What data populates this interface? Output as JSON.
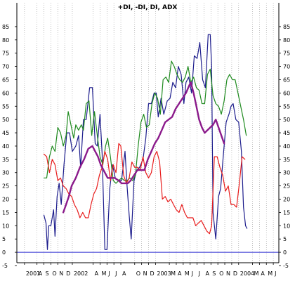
{
  "chart_data": {
    "type": "line",
    "title": "+DI, -DI, DI, ADX",
    "xlabel": "",
    "ylabel": "",
    "ylim": [
      -5,
      90
    ],
    "yticks": [
      -5,
      0,
      5,
      10,
      15,
      20,
      25,
      30,
      35,
      40,
      45,
      50,
      55,
      60,
      65,
      70,
      75,
      80,
      85
    ],
    "grid": "vertical dotted",
    "x_tick_labels": [
      {
        "label": "2001",
        "t": 0.0
      },
      {
        "label": "A",
        "t": 1.8
      },
      {
        "label": "S",
        "t": 2.8
      },
      {
        "label": "O",
        "t": 3.8
      },
      {
        "label": "N",
        "t": 4.8
      },
      {
        "label": "D",
        "t": 5.8
      },
      {
        "label": "2002",
        "t": 6.9
      },
      {
        "label": "A",
        "t": 9.9
      },
      {
        "label": "M",
        "t": 10.9
      },
      {
        "label": "J",
        "t": 11.9
      },
      {
        "label": "J",
        "t": 12.9
      },
      {
        "label": "A",
        "t": 13.9
      },
      {
        "label": "O",
        "t": 15.9
      },
      {
        "label": "N",
        "t": 16.9
      },
      {
        "label": "D",
        "t": 17.9
      },
      {
        "label": "2003",
        "t": 18.9
      },
      {
        "label": "M",
        "t": 20.9
      },
      {
        "label": "A",
        "t": 21.9
      },
      {
        "label": "M",
        "t": 22.9
      },
      {
        "label": "J",
        "t": 23.9
      },
      {
        "label": "J",
        "t": 24.9
      },
      {
        "label": "A",
        "t": 25.9
      },
      {
        "label": "S",
        "t": 26.9
      },
      {
        "label": "O",
        "t": 27.9
      },
      {
        "label": "N",
        "t": 28.9
      },
      {
        "label": "D",
        "t": 29.9
      },
      {
        "label": "2004",
        "t": 30.9
      },
      {
        "label": "M",
        "t": 32.9
      },
      {
        "label": "A",
        "t": 33.9
      },
      {
        "label": "M",
        "t": 34.9
      },
      {
        "label": "J",
        "t": 35.9
      }
    ],
    "x_range": [
      -0.8,
      36.7
    ],
    "zero_line": 0,
    "series": [
      {
        "key": "blue",
        "color": "#1c1c8c",
        "width": 1.2,
        "points": [
          [
            2.8,
            14
          ],
          [
            3.1,
            11
          ],
          [
            3.3,
            1
          ],
          [
            3.5,
            10
          ],
          [
            3.8,
            10
          ],
          [
            4.2,
            16
          ],
          [
            4.4,
            6
          ],
          [
            4.7,
            21
          ],
          [
            5.0,
            26
          ],
          [
            5.3,
            18
          ],
          [
            5.7,
            33
          ],
          [
            6.1,
            45
          ],
          [
            6.5,
            45
          ],
          [
            6.9,
            38
          ],
          [
            7.4,
            40
          ],
          [
            7.8,
            44
          ],
          [
            8.1,
            32
          ],
          [
            8.5,
            50
          ],
          [
            8.9,
            50
          ],
          [
            9.4,
            62
          ],
          [
            9.8,
            62
          ],
          [
            10.2,
            41
          ],
          [
            10.5,
            40
          ],
          [
            10.9,
            52
          ],
          [
            11.2,
            37
          ],
          [
            11.6,
            1
          ],
          [
            11.9,
            1
          ],
          [
            12.3,
            24
          ],
          [
            12.7,
            33
          ],
          [
            13.1,
            28
          ],
          [
            13.6,
            27
          ],
          [
            14.0,
            27
          ],
          [
            14.5,
            38
          ],
          [
            14.8,
            25
          ],
          [
            15.1,
            14
          ],
          [
            15.4,
            5
          ],
          [
            15.8,
            27
          ],
          [
            16.2,
            31
          ],
          [
            16.6,
            32
          ],
          [
            17.1,
            35
          ],
          [
            17.5,
            43
          ],
          [
            17.9,
            56
          ],
          [
            18.3,
            56
          ],
          [
            18.7,
            60
          ],
          [
            19.0,
            60
          ],
          [
            19.3,
            51
          ],
          [
            19.7,
            58
          ],
          [
            20.1,
            52
          ],
          [
            20.6,
            57
          ],
          [
            21.0,
            58
          ],
          [
            21.4,
            64
          ],
          [
            21.8,
            62
          ],
          [
            22.2,
            70
          ],
          [
            22.6,
            67
          ],
          [
            23.0,
            56
          ],
          [
            23.3,
            64
          ],
          [
            23.7,
            66
          ],
          [
            24.1,
            60
          ],
          [
            24.5,
            74
          ],
          [
            24.9,
            73
          ],
          [
            25.3,
            79
          ],
          [
            25.7,
            65
          ],
          [
            26.1,
            62
          ],
          [
            26.5,
            82
          ],
          [
            26.8,
            82
          ],
          [
            27.0,
            70
          ],
          [
            27.2,
            15
          ],
          [
            27.6,
            5
          ],
          [
            28.0,
            21
          ],
          [
            28.3,
            24
          ],
          [
            28.7,
            37
          ],
          [
            29.1,
            49
          ],
          [
            29.5,
            52
          ],
          [
            29.8,
            55
          ],
          [
            30.1,
            56
          ],
          [
            30.5,
            50
          ],
          [
            30.9,
            49
          ],
          [
            31.3,
            38
          ],
          [
            31.6,
            17
          ],
          [
            31.9,
            10
          ],
          [
            32.1,
            9
          ]
        ]
      },
      {
        "key": "green",
        "color": "#1e8a1e",
        "width": 1.2,
        "points": [
          [
            2.8,
            28
          ],
          [
            3.2,
            28
          ],
          [
            3.6,
            36
          ],
          [
            4.0,
            40
          ],
          [
            4.4,
            38
          ],
          [
            4.8,
            47
          ],
          [
            5.2,
            45
          ],
          [
            5.6,
            40
          ],
          [
            6.0,
            44
          ],
          [
            6.3,
            53
          ],
          [
            6.7,
            48
          ],
          [
            7.1,
            43
          ],
          [
            7.4,
            48
          ],
          [
            7.8,
            46
          ],
          [
            8.2,
            48
          ],
          [
            8.5,
            46
          ],
          [
            8.9,
            56
          ],
          [
            9.3,
            57
          ],
          [
            9.7,
            44
          ],
          [
            10.1,
            53
          ],
          [
            10.5,
            44
          ],
          [
            10.9,
            36
          ],
          [
            11.3,
            33
          ],
          [
            11.7,
            40
          ],
          [
            12.0,
            43
          ],
          [
            12.4,
            36
          ],
          [
            12.8,
            27
          ],
          [
            13.2,
            26
          ],
          [
            13.6,
            27
          ],
          [
            14.0,
            28
          ],
          [
            14.4,
            27
          ],
          [
            14.8,
            27
          ],
          [
            15.2,
            28
          ],
          [
            15.6,
            27
          ],
          [
            16.0,
            29
          ],
          [
            16.4,
            40
          ],
          [
            16.8,
            49
          ],
          [
            17.2,
            52
          ],
          [
            17.6,
            47
          ],
          [
            18.0,
            48
          ],
          [
            18.4,
            56
          ],
          [
            18.8,
            60
          ],
          [
            19.2,
            58
          ],
          [
            19.6,
            52
          ],
          [
            20.0,
            65
          ],
          [
            20.4,
            66
          ],
          [
            20.8,
            64
          ],
          [
            21.2,
            72
          ],
          [
            21.6,
            70
          ],
          [
            22.0,
            67
          ],
          [
            22.4,
            65
          ],
          [
            22.8,
            64
          ],
          [
            23.2,
            66
          ],
          [
            23.6,
            70
          ],
          [
            24.0,
            64
          ],
          [
            24.4,
            66
          ],
          [
            24.8,
            62
          ],
          [
            25.2,
            61
          ],
          [
            25.6,
            56
          ],
          [
            26.0,
            56
          ],
          [
            26.4,
            67
          ],
          [
            26.8,
            69
          ],
          [
            27.2,
            59
          ],
          [
            27.6,
            56
          ],
          [
            28.0,
            55
          ],
          [
            28.4,
            52
          ],
          [
            28.8,
            57
          ],
          [
            29.2,
            65
          ],
          [
            29.6,
            67
          ],
          [
            30.0,
            65
          ],
          [
            30.4,
            65
          ],
          [
            30.8,
            60
          ],
          [
            31.2,
            55
          ],
          [
            31.6,
            50
          ],
          [
            32.0,
            44
          ]
        ]
      },
      {
        "key": "red",
        "color": "#e81c1c",
        "width": 1.2,
        "points": [
          [
            2.8,
            37
          ],
          [
            3.2,
            36
          ],
          [
            3.6,
            30
          ],
          [
            4.0,
            35
          ],
          [
            4.4,
            33
          ],
          [
            4.8,
            27
          ],
          [
            5.2,
            28
          ],
          [
            5.6,
            25
          ],
          [
            6.0,
            24
          ],
          [
            6.4,
            22
          ],
          [
            6.8,
            21
          ],
          [
            7.2,
            18
          ],
          [
            7.6,
            16
          ],
          [
            8.0,
            13
          ],
          [
            8.4,
            15
          ],
          [
            8.8,
            13
          ],
          [
            9.2,
            13
          ],
          [
            9.6,
            18
          ],
          [
            10.0,
            22
          ],
          [
            10.4,
            24
          ],
          [
            10.8,
            29
          ],
          [
            11.2,
            32
          ],
          [
            11.6,
            38
          ],
          [
            12.0,
            35
          ],
          [
            12.4,
            27
          ],
          [
            12.8,
            33
          ],
          [
            13.2,
            30
          ],
          [
            13.6,
            41
          ],
          [
            13.9,
            40
          ],
          [
            14.3,
            29
          ],
          [
            14.7,
            26
          ],
          [
            15.1,
            28
          ],
          [
            15.5,
            34
          ],
          [
            15.9,
            32
          ],
          [
            16.3,
            32
          ],
          [
            16.7,
            31
          ],
          [
            17.1,
            36
          ],
          [
            17.5,
            30
          ],
          [
            17.9,
            28
          ],
          [
            18.3,
            30
          ],
          [
            18.7,
            36
          ],
          [
            19.1,
            38
          ],
          [
            19.5,
            34
          ],
          [
            19.9,
            20
          ],
          [
            20.3,
            21
          ],
          [
            20.7,
            19
          ],
          [
            21.1,
            20
          ],
          [
            21.5,
            18
          ],
          [
            21.9,
            16
          ],
          [
            22.3,
            15
          ],
          [
            22.7,
            18
          ],
          [
            23.1,
            15
          ],
          [
            23.5,
            13
          ],
          [
            23.9,
            13
          ],
          [
            24.3,
            13
          ],
          [
            24.7,
            10
          ],
          [
            25.1,
            11
          ],
          [
            25.5,
            12
          ],
          [
            25.9,
            10
          ],
          [
            26.3,
            8
          ],
          [
            26.7,
            7
          ],
          [
            27.0,
            10
          ],
          [
            27.4,
            36
          ],
          [
            27.8,
            36
          ],
          [
            28.2,
            32
          ],
          [
            28.6,
            29
          ],
          [
            29.0,
            23
          ],
          [
            29.4,
            25
          ],
          [
            29.8,
            18
          ],
          [
            30.2,
            18
          ],
          [
            30.6,
            17
          ],
          [
            31.0,
            26
          ],
          [
            31.4,
            36
          ],
          [
            31.8,
            35
          ]
        ]
      },
      {
        "key": "purple",
        "color": "#8b1a8b",
        "width": 2.4,
        "points": [
          [
            5.6,
            15
          ],
          [
            6.0,
            18
          ],
          [
            6.4,
            21
          ],
          [
            6.8,
            25
          ],
          [
            7.4,
            28
          ],
          [
            8.0,
            32
          ],
          [
            8.6,
            35
          ],
          [
            9.2,
            39
          ],
          [
            9.8,
            40
          ],
          [
            10.2,
            38
          ],
          [
            10.6,
            36
          ],
          [
            11.0,
            33
          ],
          [
            11.6,
            30
          ],
          [
            12.0,
            28
          ],
          [
            12.5,
            28
          ],
          [
            13.0,
            28
          ],
          [
            13.6,
            27
          ],
          [
            14.0,
            26
          ],
          [
            14.5,
            26
          ],
          [
            14.9,
            26
          ],
          [
            15.3,
            27
          ],
          [
            15.8,
            29
          ],
          [
            16.3,
            31
          ],
          [
            16.9,
            31
          ],
          [
            17.3,
            31
          ],
          [
            17.8,
            35
          ],
          [
            18.3,
            38
          ],
          [
            18.8,
            41
          ],
          [
            19.3,
            43
          ],
          [
            19.8,
            46
          ],
          [
            20.3,
            49
          ],
          [
            20.8,
            50
          ],
          [
            21.3,
            51
          ],
          [
            21.8,
            54
          ],
          [
            22.3,
            56
          ],
          [
            22.8,
            58
          ],
          [
            23.3,
            60
          ],
          [
            23.8,
            63
          ],
          [
            24.0,
            64
          ],
          [
            24.4,
            60
          ],
          [
            24.8,
            55
          ],
          [
            25.2,
            50
          ],
          [
            25.6,
            47
          ],
          [
            26.0,
            45
          ],
          [
            26.4,
            46
          ],
          [
            26.8,
            47
          ],
          [
            27.2,
            48
          ],
          [
            27.6,
            50
          ],
          [
            28.0,
            47
          ],
          [
            28.4,
            44
          ],
          [
            28.8,
            41
          ]
        ]
      }
    ]
  }
}
